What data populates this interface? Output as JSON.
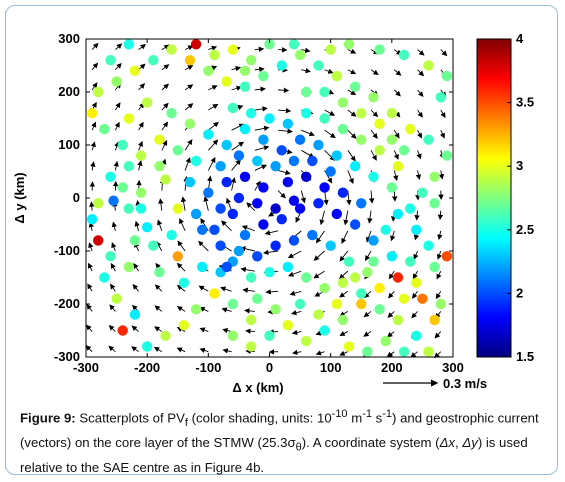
{
  "chart_data": {
    "type": "scatter",
    "xlabel": "Δ x (km)",
    "ylabel": "Δ y (km)",
    "xlim": [
      -300,
      300
    ],
    "ylim": [
      -300,
      300
    ],
    "xticks": [
      "-300",
      "-200",
      "-100",
      "0",
      "100",
      "200",
      "300"
    ],
    "yticks": [
      "300",
      "200",
      "100",
      "0",
      "-100",
      "-200",
      "-300"
    ],
    "colorbar": {
      "range": [
        1.5,
        4
      ],
      "ticks": [
        "4",
        "3.5",
        "3",
        "2.5",
        "2",
        "1.5"
      ],
      "colormap": "jet"
    },
    "reference_vector_label": "0.3 m/s",
    "points": [
      [
        -255,
        -5,
        2.1
      ],
      [
        -230,
        -20,
        2.6
      ],
      [
        -210,
        10,
        2.8
      ],
      [
        -170,
        35,
        2.9
      ],
      [
        -150,
        -20,
        3.0
      ],
      [
        -200,
        -55,
        2.4
      ],
      [
        -120,
        -30,
        2.2
      ],
      [
        -90,
        -60,
        2.0
      ],
      [
        -60,
        -30,
        1.9
      ],
      [
        -40,
        -70,
        2.1
      ],
      [
        -10,
        -50,
        1.8
      ],
      [
        20,
        -40,
        1.9
      ],
      [
        50,
        -20,
        1.8
      ],
      [
        80,
        -10,
        1.9
      ],
      [
        110,
        -30,
        1.8
      ],
      [
        140,
        -50,
        2.0
      ],
      [
        170,
        -80,
        2.2
      ],
      [
        200,
        -110,
        2.4
      ],
      [
        -100,
        10,
        2.1
      ],
      [
        -70,
        30,
        1.9
      ],
      [
        -40,
        40,
        1.8
      ],
      [
        -10,
        20,
        1.8
      ],
      [
        30,
        30,
        1.8
      ],
      [
        60,
        40,
        1.7
      ],
      [
        90,
        20,
        1.8
      ],
      [
        120,
        10,
        1.9
      ],
      [
        150,
        -10,
        2.1
      ],
      [
        -20,
        -10,
        1.8
      ],
      [
        10,
        -20,
        1.7
      ],
      [
        40,
        -5,
        1.8
      ],
      [
        -80,
        -90,
        2.0
      ],
      [
        -50,
        -100,
        2.2
      ],
      [
        -20,
        -110,
        2.0
      ],
      [
        10,
        -90,
        1.9
      ],
      [
        40,
        -80,
        2.0
      ],
      [
        70,
        -70,
        2.1
      ],
      [
        100,
        -90,
        2.3
      ],
      [
        130,
        -120,
        2.6
      ],
      [
        160,
        -140,
        2.8
      ],
      [
        -150,
        -110,
        3.3
      ],
      [
        -180,
        -140,
        2.7
      ],
      [
        -230,
        -130,
        2.8
      ],
      [
        -260,
        -110,
        2.6
      ],
      [
        -270,
        -150,
        2.5
      ],
      [
        -250,
        -190,
        2.9
      ],
      [
        -220,
        -220,
        2.4
      ],
      [
        -240,
        -250,
        3.6
      ],
      [
        -200,
        -280,
        2.5
      ],
      [
        -170,
        -260,
        2.9
      ],
      [
        -140,
        -240,
        3.0
      ],
      [
        -120,
        -210,
        2.8
      ],
      [
        -90,
        -180,
        3.1
      ],
      [
        -60,
        -200,
        2.7
      ],
      [
        -30,
        -230,
        2.9
      ],
      [
        0,
        -260,
        2.6
      ],
      [
        30,
        -240,
        3.0
      ],
      [
        60,
        -270,
        2.9
      ],
      [
        90,
        -250,
        2.5
      ],
      [
        120,
        -230,
        2.8
      ],
      [
        150,
        -200,
        3.2
      ],
      [
        180,
        -170,
        3.1
      ],
      [
        210,
        -150,
        3.6
      ],
      [
        240,
        -160,
        3.0
      ],
      [
        270,
        -130,
        2.7
      ],
      [
        290,
        -110,
        3.5
      ],
      [
        260,
        -90,
        2.5
      ],
      [
        240,
        -60,
        2.4
      ],
      [
        230,
        -20,
        2.5
      ],
      [
        250,
        10,
        2.6
      ],
      [
        270,
        40,
        2.8
      ],
      [
        290,
        80,
        2.7
      ],
      [
        260,
        110,
        2.6
      ],
      [
        230,
        130,
        3.0
      ],
      [
        200,
        160,
        2.9
      ],
      [
        170,
        190,
        2.8
      ],
      [
        140,
        210,
        2.7
      ],
      [
        110,
        230,
        2.9
      ],
      [
        80,
        250,
        2.6
      ],
      [
        50,
        270,
        2.8
      ],
      [
        20,
        250,
        2.5
      ],
      [
        -10,
        230,
        2.7
      ],
      [
        -40,
        210,
        2.6
      ],
      [
        -70,
        220,
        3.0
      ],
      [
        -100,
        240,
        2.8
      ],
      [
        -130,
        260,
        3.2
      ],
      [
        -160,
        280,
        2.9
      ],
      [
        -190,
        260,
        2.6
      ],
      [
        -220,
        240,
        3.0
      ],
      [
        -250,
        220,
        2.8
      ],
      [
        -280,
        200,
        2.9
      ],
      [
        -290,
        160,
        3.1
      ],
      [
        -270,
        130,
        2.7
      ],
      [
        -240,
        100,
        2.6
      ],
      [
        -210,
        80,
        2.9
      ],
      [
        -180,
        110,
        3.0
      ],
      [
        -150,
        90,
        2.7
      ],
      [
        -120,
        70,
        2.5
      ],
      [
        -100,
        120,
        2.4
      ],
      [
        -70,
        100,
        2.3
      ],
      [
        -40,
        130,
        2.4
      ],
      [
        -10,
        110,
        2.2
      ],
      [
        20,
        90,
        2.0
      ],
      [
        50,
        110,
        2.1
      ],
      [
        80,
        100,
        2.2
      ],
      [
        110,
        80,
        2.3
      ],
      [
        140,
        60,
        2.4
      ],
      [
        170,
        40,
        2.5
      ],
      [
        200,
        20,
        2.7
      ],
      [
        -60,
        170,
        2.6
      ],
      [
        -30,
        160,
        2.5
      ],
      [
        0,
        150,
        2.4
      ],
      [
        30,
        140,
        2.3
      ],
      [
        60,
        160,
        2.5
      ],
      [
        90,
        150,
        2.6
      ],
      [
        120,
        130,
        2.7
      ],
      [
        150,
        110,
        2.8
      ],
      [
        180,
        90,
        2.9
      ],
      [
        210,
        60,
        3.0
      ],
      [
        -160,
        160,
        2.7
      ],
      [
        -130,
        140,
        2.8
      ],
      [
        -200,
        180,
        2.9
      ],
      [
        -230,
        150,
        3.0
      ],
      [
        -260,
        260,
        2.6
      ],
      [
        -230,
        290,
        2.5
      ],
      [
        -120,
        290,
        3.8
      ],
      [
        -90,
        270,
        2.9
      ],
      [
        -60,
        280,
        3.0
      ],
      [
        -30,
        260,
        2.8
      ],
      [
        0,
        290,
        2.7
      ],
      [
        40,
        290,
        2.6
      ],
      [
        100,
        280,
        2.9
      ],
      [
        130,
        290,
        2.8
      ],
      [
        180,
        280,
        2.7
      ],
      [
        220,
        270,
        2.6
      ],
      [
        260,
        250,
        2.9
      ],
      [
        290,
        230,
        2.7
      ],
      [
        280,
        190,
        2.6
      ],
      [
        -280,
        -80,
        3.8
      ],
      [
        -290,
        -40,
        2.4
      ],
      [
        -260,
        40,
        2.5
      ],
      [
        -230,
        60,
        2.6
      ],
      [
        -20,
        70,
        2.3
      ],
      [
        10,
        60,
        2.2
      ],
      [
        40,
        70,
        2.1
      ],
      [
        70,
        70,
        2.0
      ],
      [
        100,
        50,
        2.1
      ],
      [
        -80,
        60,
        2.2
      ],
      [
        -50,
        80,
        2.1
      ],
      [
        -130,
        30,
        2.3
      ],
      [
        -160,
        -70,
        2.5
      ],
      [
        -190,
        -90,
        2.6
      ],
      [
        -220,
        -80,
        2.7
      ],
      [
        -30,
        -150,
        2.6
      ],
      [
        0,
        -140,
        2.5
      ],
      [
        30,
        -130,
        2.4
      ],
      [
        60,
        -150,
        2.7
      ],
      [
        90,
        -170,
        2.8
      ],
      [
        120,
        -160,
        2.9
      ],
      [
        150,
        -180,
        2.6
      ],
      [
        180,
        -210,
        2.7
      ],
      [
        210,
        -230,
        2.9
      ],
      [
        240,
        -260,
        2.5
      ],
      [
        270,
        -230,
        3.2
      ],
      [
        280,
        -200,
        2.8
      ],
      [
        250,
        -190,
        3.4
      ],
      [
        220,
        -190,
        3.0
      ],
      [
        -60,
        -260,
        2.8
      ],
      [
        -30,
        -280,
        2.9
      ],
      [
        130,
        -280,
        3.0
      ],
      [
        160,
        -290,
        2.7
      ],
      [
        190,
        -270,
        2.8
      ],
      [
        220,
        -290,
        2.6
      ],
      [
        260,
        -290,
        2.9
      ],
      [
        -110,
        -130,
        2.4
      ],
      [
        -140,
        -160,
        2.5
      ],
      [
        -80,
        -140,
        2.3
      ],
      [
        -60,
        -120,
        2.2
      ],
      [
        -20,
        -190,
        2.7
      ],
      [
        10,
        -210,
        2.8
      ],
      [
        50,
        -200,
        2.6
      ],
      [
        80,
        -220,
        2.9
      ],
      [
        110,
        -200,
        3.0
      ],
      [
        140,
        -150,
        2.9
      ],
      [
        170,
        -120,
        2.7
      ],
      [
        190,
        -60,
        2.5
      ],
      [
        210,
        -30,
        2.4
      ],
      [
        230,
        -120,
        2.6
      ],
      [
        270,
        -10,
        2.7
      ],
      [
        -50,
        0,
        1.9
      ],
      [
        -80,
        -20,
        2.0
      ],
      [
        -110,
        -60,
        2.1
      ],
      [
        -70,
        -130,
        2.0
      ],
      [
        -240,
        20,
        2.7
      ],
      [
        -210,
        -20,
        2.5
      ],
      [
        -180,
        60,
        2.8
      ],
      [
        -280,
        -10,
        2.9
      ],
      [
        -40,
        240,
        2.8
      ],
      [
        60,
        200,
        2.7
      ],
      [
        90,
        200,
        2.6
      ],
      [
        120,
        180,
        2.8
      ],
      [
        150,
        160,
        2.9
      ],
      [
        180,
        140,
        3.0
      ],
      [
        200,
        110,
        2.8
      ],
      [
        220,
        90,
        2.7
      ]
    ]
  },
  "caption": {
    "label": "Figure 9:",
    "t1": " Scatterplots of PV",
    "sub_f": "f",
    "t2": " (color shading, units: 10",
    "sup_10": "-10",
    "t3": " m",
    "sup_m": "-1",
    "t4": " s",
    "sup_s": "-1",
    "t5": ") and geostrophic current (vectors) on the core layer of the STMW (25.3σ",
    "sub_theta": "θ",
    "t6": "). A coordinate system (",
    "dx": "Δx",
    "t7": ", ",
    "dy": "Δy",
    "t8": ") is used relative to the SAE centre as in Figure 4b."
  }
}
